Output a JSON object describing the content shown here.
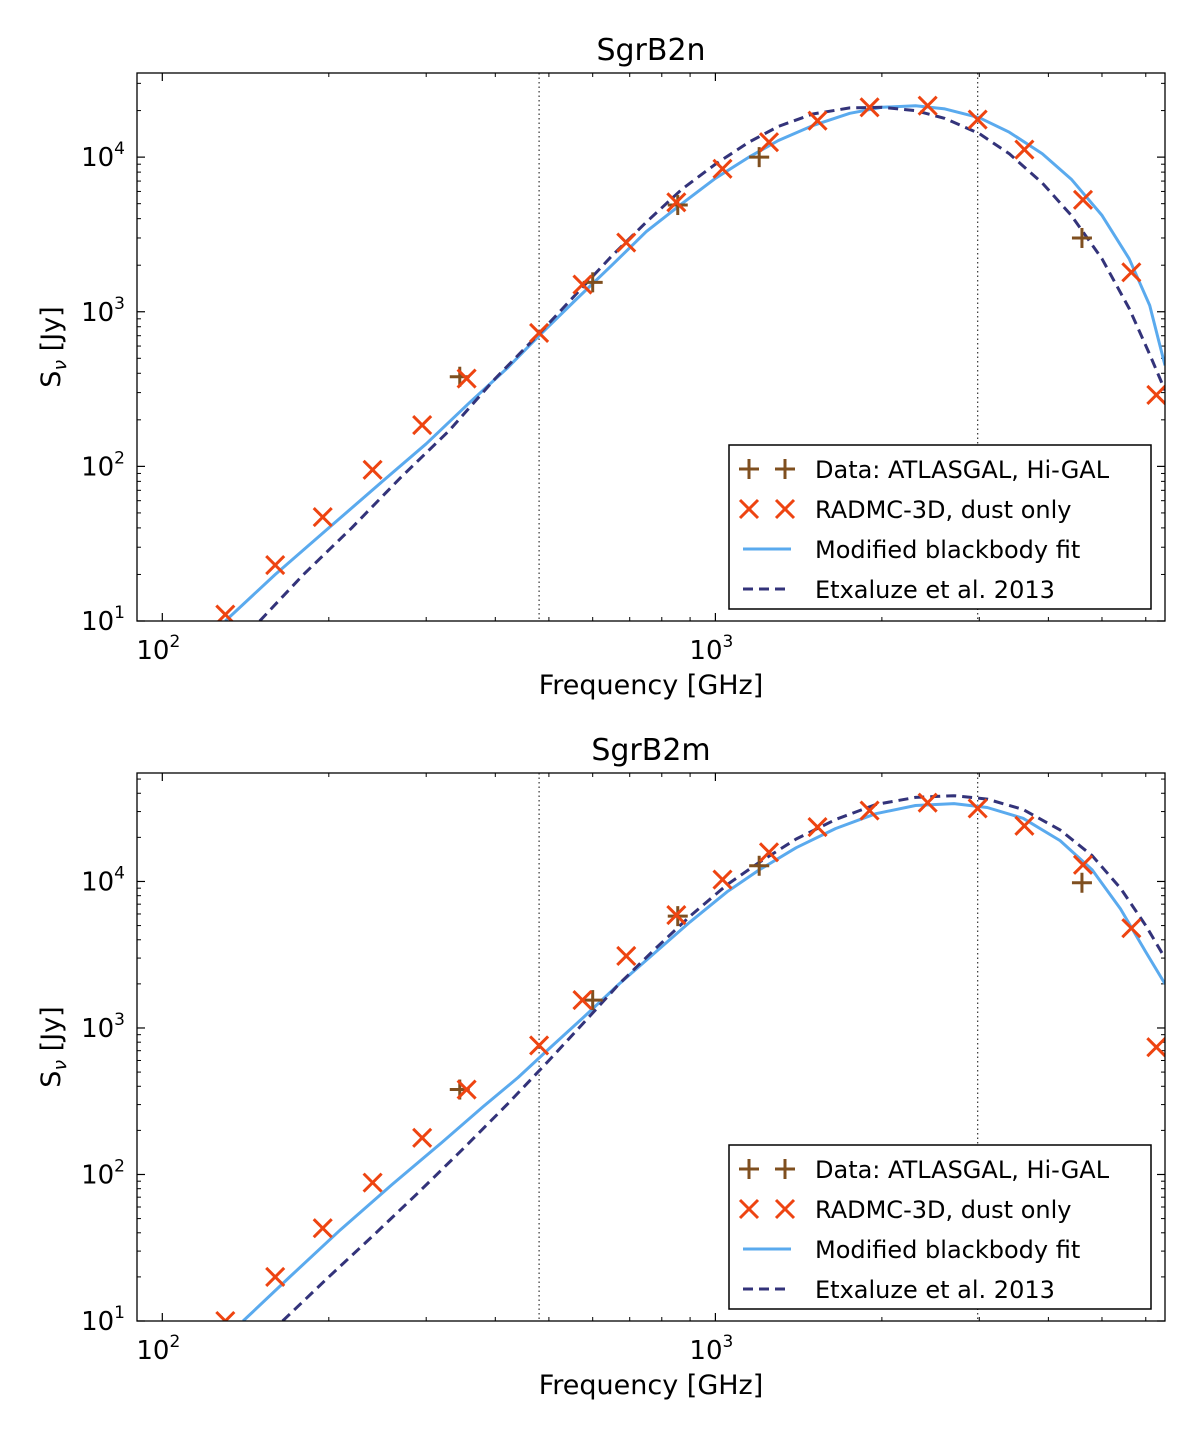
{
  "units": {
    "sub_nu": "ν"
  },
  "chart_data": [
    {
      "type": "line",
      "title": "SgrB2n",
      "xlabel": "Frequency [GHz]",
      "ylabel_main": "S",
      "ylabel_sub": "ν",
      "ylabel_unit": " [Jy]",
      "xscale": "log",
      "yscale": "log",
      "xlim": [
        90,
        6500
      ],
      "ylim": [
        10,
        35000
      ],
      "xticks": [
        {
          "value": 100,
          "base": "10",
          "exp": "2"
        },
        {
          "value": 1000,
          "base": "10",
          "exp": "3"
        }
      ],
      "yticks": [
        {
          "value": 10,
          "base": "10",
          "exp": "1"
        },
        {
          "value": 100,
          "base": "10",
          "exp": "2"
        },
        {
          "value": 1000,
          "base": "10",
          "exp": "3"
        },
        {
          "value": 10000,
          "base": "10",
          "exp": "4"
        }
      ],
      "vlines": [
        480,
        2980
      ],
      "legend_position": "lower-right",
      "series": [
        {
          "name": "Data: ATLASGAL, Hi-GAL",
          "kind": "plus",
          "color": "#7f4f1f",
          "x": [
            345,
            600,
            855,
            1200,
            4600
          ],
          "y": [
            380,
            1550,
            4900,
            10000,
            3000
          ]
        },
        {
          "name": "RADMC-3D, dust only",
          "kind": "x",
          "color": "#ee4411",
          "x": [
            130,
            160,
            195,
            240,
            295,
            355,
            480,
            575,
            690,
            850,
            1030,
            1250,
            1530,
            1900,
            2420,
            2980,
            3620,
            4620,
            5650,
            6270
          ],
          "y": [
            11,
            23,
            47,
            95,
            185,
            370,
            730,
            1500,
            2800,
            5100,
            8400,
            12500,
            17200,
            21000,
            21500,
            17500,
            11200,
            5300,
            1800,
            290
          ]
        },
        {
          "name": "Modified blackbody fit",
          "kind": "solid",
          "color": "#5aaaee",
          "x": [
            130,
            160,
            200,
            250,
            300,
            360,
            420,
            480,
            560,
            650,
            750,
            870,
            1000,
            1150,
            1300,
            1500,
            1750,
            2000,
            2300,
            2600,
            3000,
            3400,
            3900,
            4400,
            5000,
            5600,
            6100,
            6500
          ],
          "y": [
            10,
            20,
            40,
            80,
            140,
            260,
            430,
            700,
            1200,
            2000,
            3300,
            5000,
            7300,
            10000,
            12800,
            16000,
            19200,
            21000,
            21500,
            20500,
            18000,
            14500,
            10500,
            7200,
            4200,
            2200,
            1100,
            450
          ]
        },
        {
          "name": "Etxaluze et al. 2013",
          "kind": "dashed",
          "color": "#33337a",
          "x": [
            150,
            180,
            220,
            270,
            330,
            400,
            480,
            560,
            650,
            750,
            870,
            1000,
            1150,
            1300,
            1500,
            1750,
            2000,
            2300,
            2600,
            3000,
            3400,
            3900,
            4400,
            5000,
            5600,
            6100,
            6500
          ],
          "y": [
            10,
            20,
            40,
            85,
            170,
            370,
            720,
            1300,
            2300,
            3800,
            6200,
            9000,
            12500,
            15800,
            19000,
            20800,
            21000,
            20000,
            17800,
            14200,
            10500,
            6800,
            4200,
            2200,
            1050,
            530,
            310
          ]
        }
      ]
    },
    {
      "type": "line",
      "title": "SgrB2m",
      "xlabel": "Frequency [GHz]",
      "ylabel_main": "S",
      "ylabel_sub": "ν",
      "ylabel_unit": " [Jy]",
      "xscale": "log",
      "yscale": "log",
      "xlim": [
        90,
        6500
      ],
      "ylim": [
        10,
        55000
      ],
      "xticks": [
        {
          "value": 100,
          "base": "10",
          "exp": "2"
        },
        {
          "value": 1000,
          "base": "10",
          "exp": "3"
        }
      ],
      "yticks": [
        {
          "value": 10,
          "base": "10",
          "exp": "1"
        },
        {
          "value": 100,
          "base": "10",
          "exp": "2"
        },
        {
          "value": 1000,
          "base": "10",
          "exp": "3"
        },
        {
          "value": 10000,
          "base": "10",
          "exp": "4"
        }
      ],
      "vlines": [
        480,
        2980
      ],
      "legend_position": "lower-right",
      "series": [
        {
          "name": "Data: ATLASGAL, Hi-GAL",
          "kind": "plus",
          "color": "#7f4f1f",
          "x": [
            345,
            600,
            855,
            1200,
            4600
          ],
          "y": [
            380,
            1550,
            5800,
            12800,
            9800
          ]
        },
        {
          "name": "RADMC-3D, dust only",
          "kind": "x",
          "color": "#ee4411",
          "x": [
            130,
            160,
            195,
            240,
            295,
            355,
            480,
            575,
            690,
            850,
            1030,
            1250,
            1530,
            1900,
            2420,
            2980,
            3620,
            4620,
            5650,
            6270
          ],
          "y": [
            10,
            20,
            43,
            88,
            178,
            380,
            760,
            1550,
            3100,
            5900,
            10300,
            15800,
            23500,
            30500,
            34500,
            31500,
            24000,
            13000,
            4800,
            740
          ]
        },
        {
          "name": "Modified blackbody fit",
          "kind": "solid",
          "color": "#5aaaee",
          "x": [
            140,
            170,
            210,
            260,
            320,
            380,
            440,
            500,
            580,
            670,
            780,
            900,
            1050,
            1200,
            1400,
            1650,
            1950,
            2300,
            2700,
            3100,
            3600,
            4200,
            4800,
            5400,
            6000,
            6500
          ],
          "y": [
            10,
            20,
            42,
            85,
            165,
            290,
            460,
            720,
            1200,
            2000,
            3300,
            5300,
            8500,
            12000,
            17000,
            23000,
            29000,
            33000,
            34000,
            32000,
            27000,
            19000,
            12000,
            6500,
            3300,
            2000
          ]
        },
        {
          "name": "Etxaluze et al. 2013",
          "kind": "dashed",
          "color": "#33337a",
          "x": [
            165,
            200,
            240,
            290,
            350,
            420,
            500,
            580,
            670,
            780,
            900,
            1050,
            1200,
            1400,
            1650,
            1950,
            2300,
            2700,
            3100,
            3600,
            4200,
            4800,
            5400,
            6000,
            6500
          ],
          "y": [
            10,
            20,
            38,
            75,
            150,
            300,
            600,
            1100,
            2000,
            3500,
            5800,
            9500,
            13500,
            19500,
            26500,
            33500,
            37500,
            38500,
            36500,
            31000,
            22500,
            15000,
            9000,
            5000,
            3000
          ]
        }
      ]
    }
  ]
}
